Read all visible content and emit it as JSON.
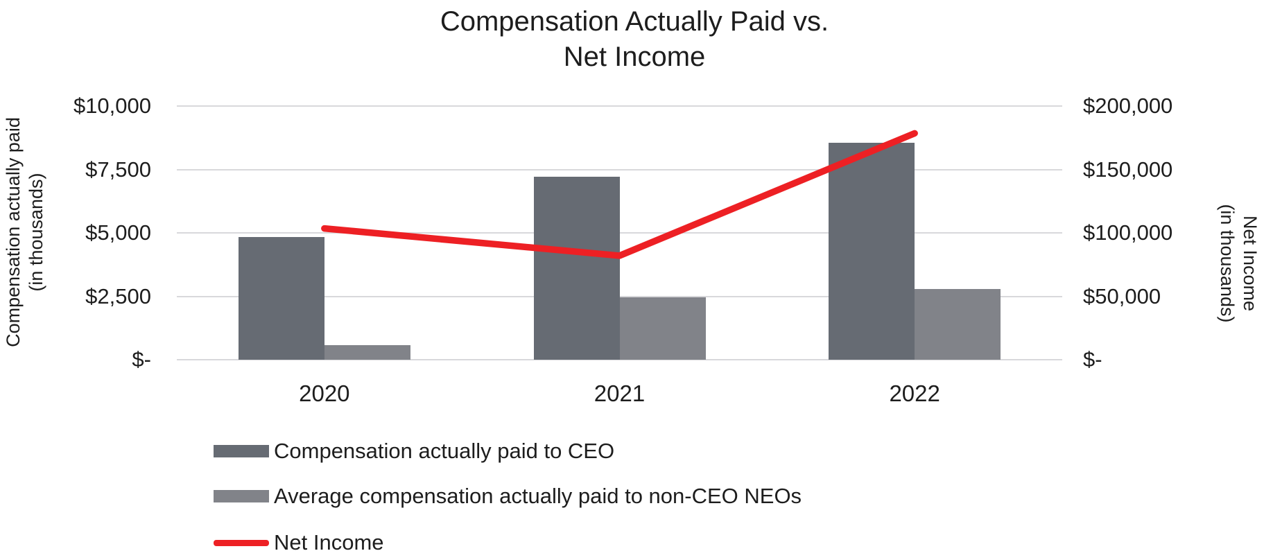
{
  "title": {
    "line1": "Compensation Actually Paid vs.",
    "line2": "Net Income"
  },
  "left_axis": {
    "title_line1": "Compensation actually paid",
    "title_line2": "(in thousands)",
    "ticks": [
      "$10,000",
      "$7,500",
      "$5,000",
      "$2,500",
      "$-"
    ],
    "max": 10000
  },
  "right_axis": {
    "title_line1": "Net Income",
    "title_line2": "(in thousands)",
    "ticks": [
      "$200,000",
      "$150,000",
      "$100,000",
      "$50,000",
      "$-"
    ],
    "max": 200000
  },
  "colors": {
    "ceo_bar": "#666b73",
    "non_ceo_bar": "#818389",
    "net_income_line": "#ed2024",
    "gridline": "#d8d8db",
    "text": "#1d1d1d"
  },
  "chart_data": {
    "type": "bar",
    "subtype": "grouped-bars-with-line-overlay",
    "title": "Compensation Actually Paid vs. Net Income",
    "categories": [
      "2020",
      "2021",
      "2022"
    ],
    "series": [
      {
        "name": "Compensation actually paid to CEO",
        "type": "bar",
        "axis": "left",
        "color": "#666b73",
        "values": [
          4850,
          7200,
          8550
        ]
      },
      {
        "name": "Average compensation actually paid to non-CEO NEOs",
        "type": "bar",
        "axis": "left",
        "color": "#818389",
        "values": [
          570,
          2450,
          2800
        ]
      },
      {
        "name": "Net Income",
        "type": "line",
        "axis": "right",
        "color": "#ed2024",
        "values": [
          103500,
          82000,
          178500
        ]
      }
    ],
    "left_ylabel": "Compensation actually paid (in thousands)",
    "right_ylabel": "Net Income (in thousands)",
    "left_ylim": [
      0,
      10000
    ],
    "right_ylim": [
      0,
      200000
    ],
    "grid": true,
    "legend_position": "bottom-left"
  }
}
